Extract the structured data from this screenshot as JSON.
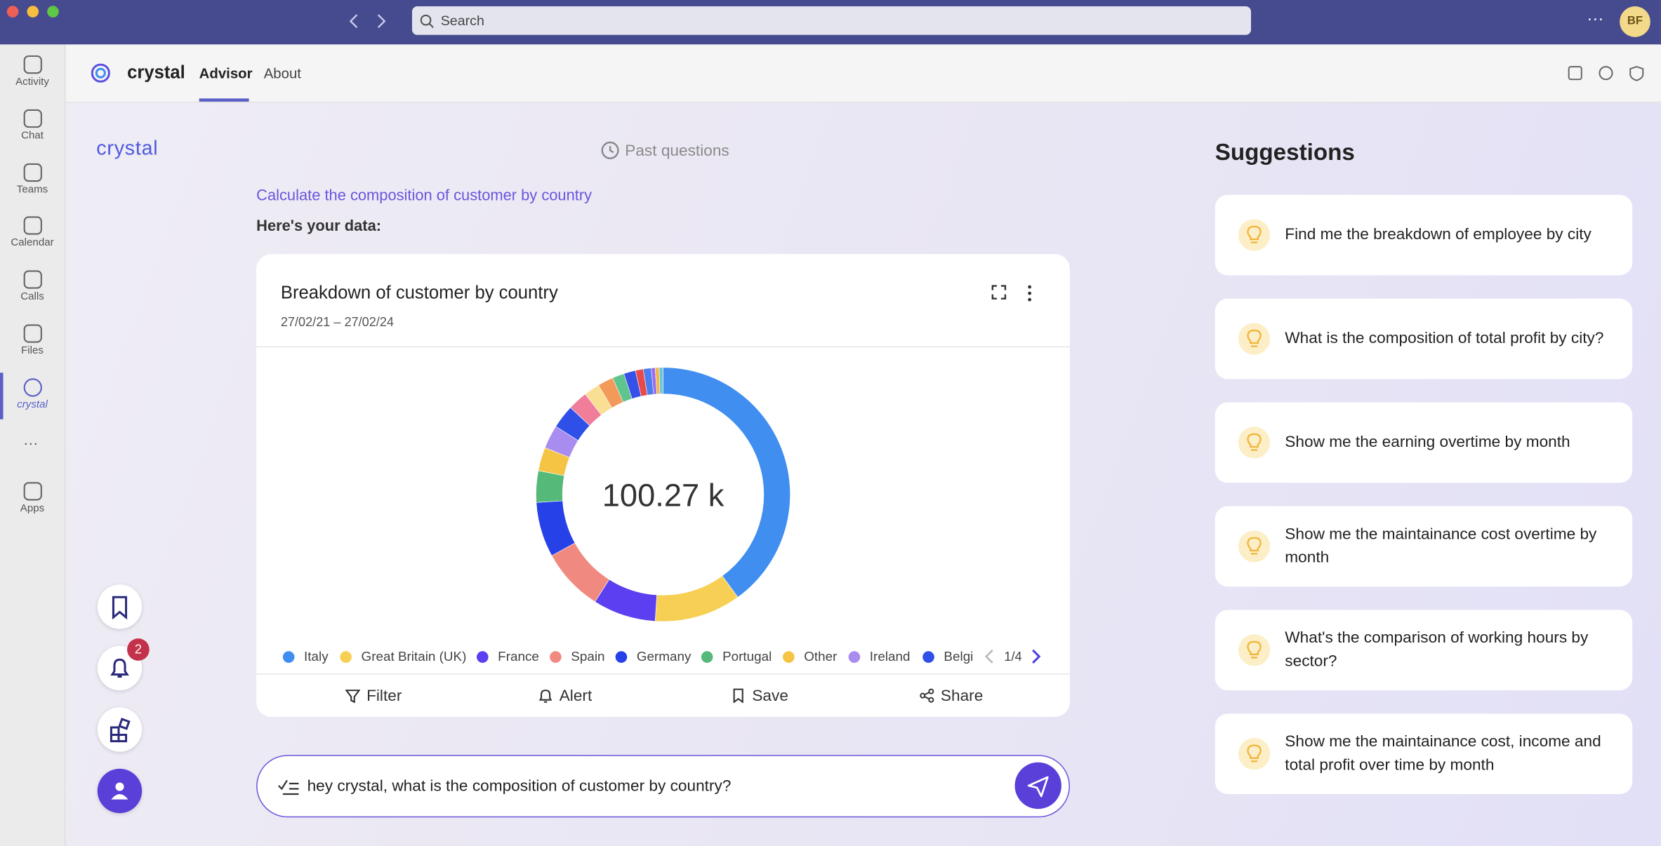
{
  "window": {
    "search": "Search",
    "avatar": "BF"
  },
  "sidebar": [
    "Activity",
    "Chat",
    "Teams",
    "Calendar",
    "Calls",
    "Files",
    "crystal",
    "Apps"
  ],
  "app_header": {
    "name": "crystal",
    "tabs": [
      "Advisor",
      "About"
    ]
  },
  "logo": "crystal",
  "past_questions": "Past questions",
  "question": "Calculate the composition of customer by country",
  "intro": "Here's your data:",
  "chart_data": {
    "type": "pie",
    "donut": true,
    "title": "Breakdown of customer by country",
    "subtitle": "27/02/21 – 27/02/24",
    "center_label": "100.27 k",
    "categories": [
      "Italy",
      "Great Britain (UK)",
      "France",
      "Spain",
      "Germany",
      "Portugal",
      "Other",
      "Ireland",
      "Belgi",
      null,
      null,
      null,
      null,
      null,
      null,
      null,
      null,
      null,
      null
    ],
    "values": [
      40,
      11,
      8,
      8,
      7,
      4,
      3,
      3,
      3,
      2.5,
      2,
      2,
      1.5,
      1.5,
      1,
      1,
      0.5,
      0.5,
      0.5
    ],
    "colors": [
      "#3f8ef0",
      "#f7cf55",
      "#5b3ff0",
      "#f08a80",
      "#2641e8",
      "#55b97a",
      "#f6c445",
      "#a98cf0",
      "#2f50e8",
      "#f07d9a",
      "#f9df93",
      "#f39a5a",
      "#5fc48e",
      "#3551e8",
      "#e8494b",
      "#4a7df0",
      "#9b6cf0",
      "#f2b94a",
      "#6fc3d9"
    ],
    "legend_page": "1/4"
  },
  "actions": [
    "Filter",
    "Alert",
    "Save",
    "Share"
  ],
  "notification_badge": "2",
  "input": "hey crystal, what is the composition of customer by country?",
  "suggestions": {
    "title": "Suggestions",
    "items": [
      "Find me the breakdown of employee by city",
      "What is the composition of total profit by city?",
      "Show me the earning overtime by month",
      "Show me the maintainance cost overtime by month",
      "What's the comparison of working hours by sector?",
      "Show me the maintainance cost, income and total profit over time by month"
    ]
  }
}
